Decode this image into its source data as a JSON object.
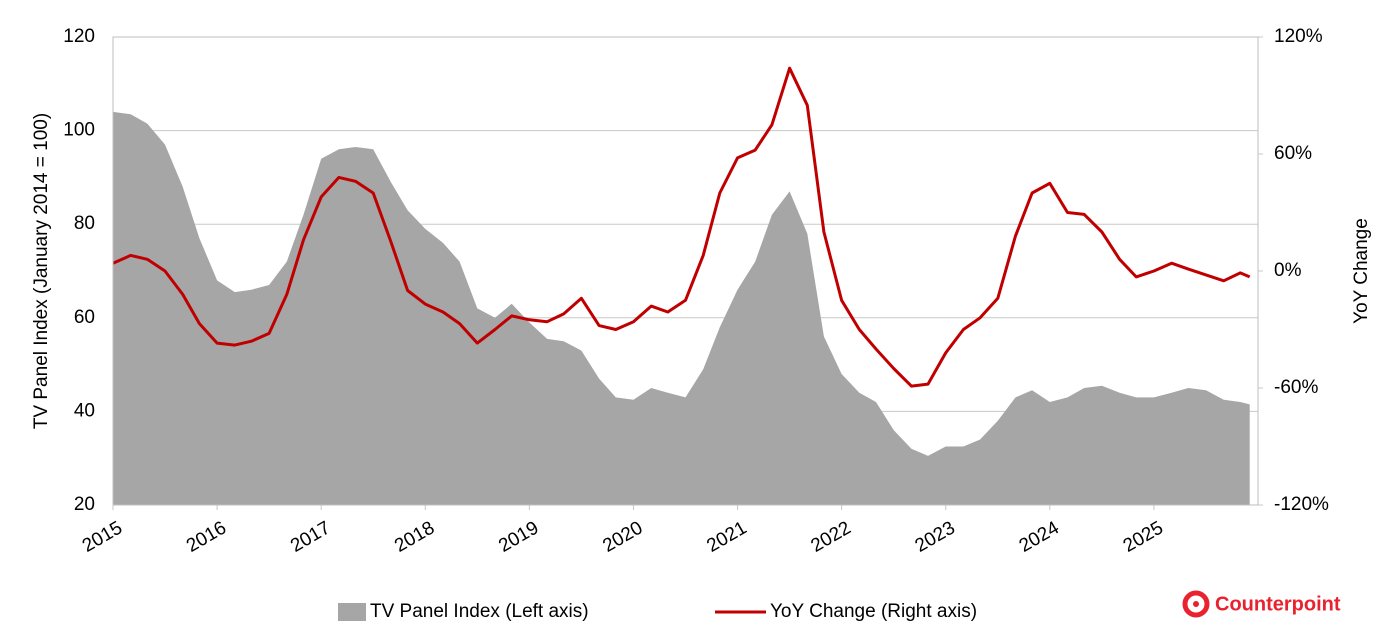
{
  "chart_data": {
    "type": "area-line",
    "x": [
      2015,
      2015.17,
      2015.33,
      2015.5,
      2015.67,
      2015.83,
      2016,
      2016.17,
      2016.33,
      2016.5,
      2016.67,
      2016.83,
      2017,
      2017.17,
      2017.33,
      2017.5,
      2017.67,
      2017.83,
      2018,
      2018.17,
      2018.33,
      2018.5,
      2018.67,
      2018.83,
      2019,
      2019.17,
      2019.33,
      2019.5,
      2019.67,
      2019.83,
      2020,
      2020.17,
      2020.33,
      2020.5,
      2020.67,
      2020.83,
      2021,
      2021.17,
      2021.33,
      2021.5,
      2021.67,
      2021.83,
      2022,
      2022.17,
      2022.33,
      2022.5,
      2022.67,
      2022.83,
      2023,
      2023.17,
      2023.33,
      2023.5,
      2023.67,
      2023.83,
      2024,
      2024.17,
      2024.33,
      2024.5,
      2024.67,
      2024.83,
      2025,
      2025.17,
      2025.33,
      2025.5,
      2025.67,
      2025.83,
      2025.92
    ],
    "series": [
      {
        "name": "TV Panel Index (Left axis)",
        "color": "#a6a6a6",
        "axis": "y",
        "values": [
          104,
          103.5,
          101.5,
          97,
          88,
          77,
          68,
          65.5,
          66,
          67,
          72,
          82,
          94,
          96,
          96.5,
          96,
          89,
          83,
          79,
          76,
          72,
          62,
          60,
          63,
          59,
          55.5,
          55,
          53,
          47,
          43,
          42.5,
          45,
          44,
          43,
          49,
          58,
          66,
          72,
          82,
          87,
          78,
          56,
          48,
          44,
          42,
          36,
          32,
          30.5,
          32.5,
          32.5,
          34,
          38,
          43,
          44.5,
          42,
          43,
          45,
          45.5,
          44,
          43,
          43,
          44,
          45,
          44.5,
          42.5,
          42,
          41.5
        ]
      },
      {
        "name": "YoY Change (Right axis)",
        "color": "#c00000",
        "axis": "y2",
        "values": [
          4,
          8,
          6,
          0,
          -12,
          -27,
          -37,
          -38,
          -36,
          -32,
          -12,
          16,
          38,
          48,
          46,
          40,
          15,
          -10,
          -17,
          -21,
          -27,
          -37,
          -30,
          -23,
          -25,
          -26,
          -22,
          -14,
          -28,
          -30,
          -26,
          -18,
          -21,
          -15,
          8,
          40,
          58,
          62,
          75,
          104,
          85,
          20,
          -15,
          -30,
          -40,
          -50,
          -59,
          -58,
          -42,
          -30,
          -24,
          -14,
          18,
          40,
          45,
          30,
          29,
          20,
          6,
          -3,
          0,
          4,
          1,
          -2,
          -5,
          -1,
          -3
        ]
      }
    ],
    "xlim": [
      2015,
      2026
    ],
    "xticks": [
      2015,
      2016,
      2017,
      2018,
      2019,
      2020,
      2021,
      2022,
      2023,
      2024,
      2025
    ],
    "ylim": [
      20,
      120
    ],
    "yticks": [
      20,
      40,
      60,
      80,
      100,
      120
    ],
    "y2lim": [
      -120,
      120
    ],
    "y2ticks": [
      {
        "value": -120,
        "label": "-120%"
      },
      {
        "value": -60,
        "label": "-60%"
      },
      {
        "value": 0,
        "label": "0%"
      },
      {
        "value": 60,
        "label": "60%"
      },
      {
        "value": 120,
        "label": "120%"
      }
    ],
    "ylabel": "TV Panel Index (January 2014 = 100)",
    "y2label": "YoY Change",
    "grid": true,
    "legend": "bottom",
    "source": "Counterpoint"
  }
}
